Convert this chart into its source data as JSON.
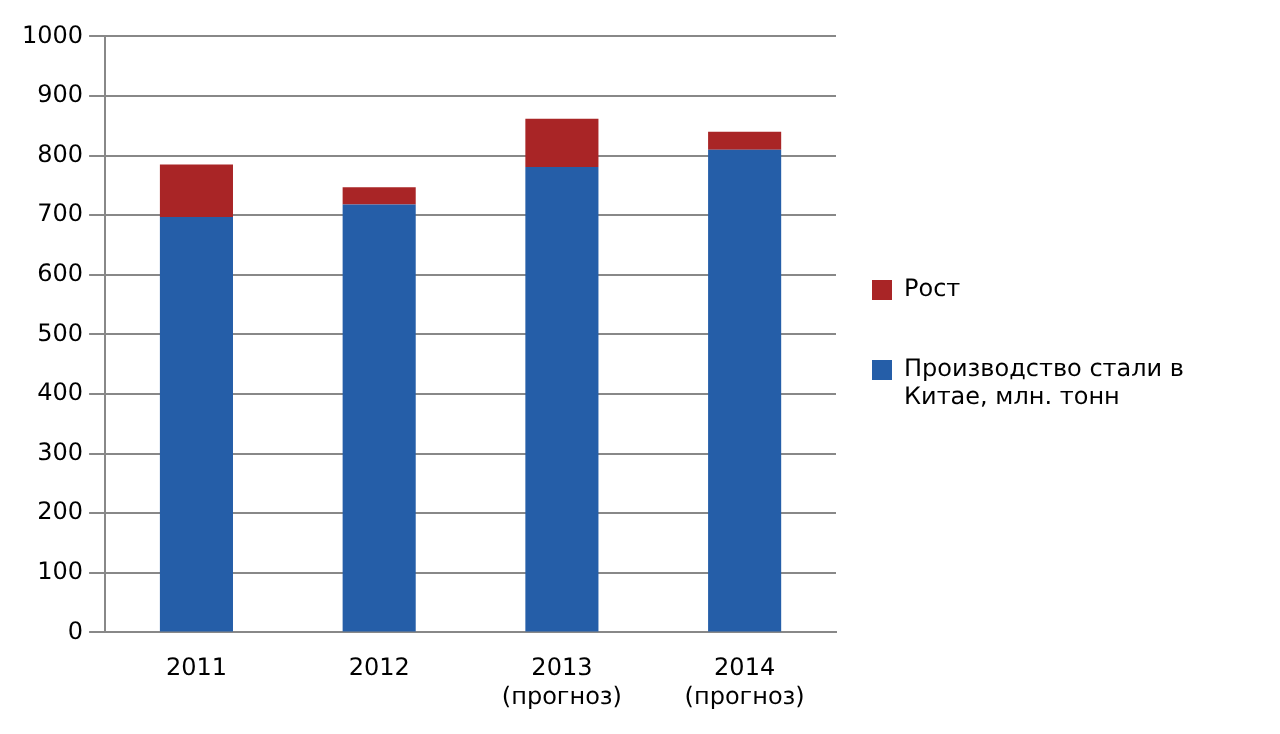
{
  "chart_data": {
    "type": "bar",
    "stacked": true,
    "categories": [
      "2011",
      "2012",
      "2013 (прогноз)",
      "2014 (прогноз)"
    ],
    "series": [
      {
        "name": "Производство стали в Китае, млн. тонн",
        "color": "#255ea8",
        "values": [
          697,
          718,
          781,
          810
        ]
      },
      {
        "name": "Рост",
        "color": "#a92526",
        "values": [
          88,
          29,
          81,
          30
        ]
      }
    ],
    "ylim": [
      0,
      1000
    ],
    "yticks": [
      0,
      100,
      200,
      300,
      400,
      500,
      600,
      700,
      800,
      900,
      1000
    ],
    "grid": "y",
    "legend": "right"
  }
}
